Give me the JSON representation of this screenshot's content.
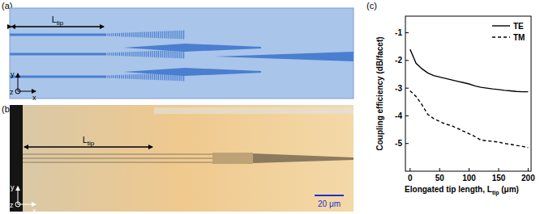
{
  "figure": {
    "panels": [
      {
        "label": "(a)",
        "dimension": {
          "main": "L",
          "sub": "tip"
        },
        "axes": {
          "y": "y",
          "z": "z",
          "x": "x"
        }
      },
      {
        "label": "(b)",
        "dimension": {
          "main": "L",
          "sub": "tip"
        },
        "axes": {
          "y": "y",
          "z": "z",
          "x": "x"
        },
        "scale_bar": "20 μm"
      }
    ]
  },
  "chart_data": {
    "type": "line",
    "label": "(c)",
    "x_label": {
      "text": "Elongated tip length, L",
      "subscript": "tip",
      "suffix": " (μm)"
    },
    "y_label": "Coupling efficiency (dB/facet)",
    "x": [
      0,
      10,
      20,
      30,
      40,
      50,
      60,
      70,
      80,
      90,
      100,
      110,
      120,
      130,
      140,
      150,
      160,
      170,
      180,
      190,
      200
    ],
    "series": [
      {
        "name": "TE",
        "color": "#000000",
        "line_style": "solid",
        "values": [
          -1.6,
          -2.1,
          -2.3,
          -2.45,
          -2.55,
          -2.6,
          -2.65,
          -2.7,
          -2.75,
          -2.8,
          -2.85,
          -2.92,
          -2.97,
          -3.0,
          -3.03,
          -3.05,
          -3.08,
          -3.1,
          -3.12,
          -3.13,
          -3.13
        ]
      },
      {
        "name": "TM",
        "color": "#000000",
        "line_style": "dashed",
        "values": [
          -3.1,
          -3.3,
          -3.6,
          -3.95,
          -4.1,
          -4.2,
          -4.3,
          -4.35,
          -4.45,
          -4.55,
          -4.65,
          -4.75,
          -4.88,
          -4.9,
          -4.92,
          -4.95,
          -5.0,
          -5.03,
          -5.07,
          -5.1,
          -5.15
        ]
      }
    ],
    "xlim": [
      -8,
      205
    ],
    "xticks": [
      0,
      50,
      100,
      150,
      200
    ],
    "ylim": [
      -6,
      -0.4
    ],
    "yticks": [
      -1,
      -2,
      -3,
      -4,
      -5
    ],
    "legend": "upper right",
    "grid": false
  }
}
